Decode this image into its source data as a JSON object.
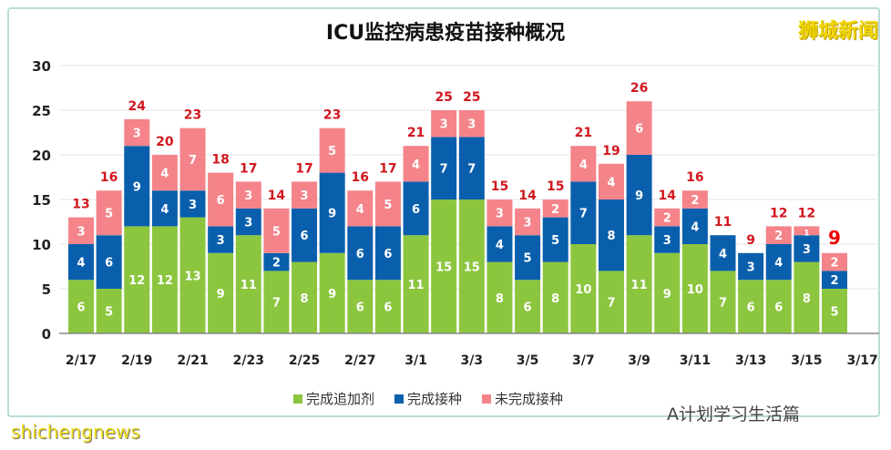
{
  "logo": "狮城新闻",
  "watermark": "A计划学习生活篇",
  "source_watermark": "shichengnews",
  "chart_data": {
    "type": "bar",
    "stacked": true,
    "title": "ICU监控病患疫苗接种概况",
    "categories": [
      "2/17",
      "2/18",
      "2/19",
      "2/20",
      "2/21",
      "2/22",
      "2/23",
      "2/24",
      "2/25",
      "2/26",
      "2/27",
      "2/28",
      "3/1",
      "3/2",
      "3/3",
      "3/4",
      "3/5",
      "3/6",
      "3/7",
      "3/8",
      "3/9",
      "3/10",
      "3/11",
      "3/12",
      "3/13",
      "3/14",
      "3/15",
      "3/16"
    ],
    "x_tick_labels": [
      "2/17",
      "2/19",
      "2/21",
      "2/23",
      "2/25",
      "2/27",
      "3/1",
      "3/3",
      "3/5",
      "3/7",
      "3/9",
      "3/11",
      "3/13",
      "3/15",
      "3/17"
    ],
    "series": [
      {
        "name": "完成追加剂",
        "color": "#8cc63f",
        "values": [
          6,
          5,
          12,
          12,
          13,
          9,
          11,
          7,
          8,
          9,
          6,
          6,
          11,
          15,
          15,
          8,
          6,
          8,
          10,
          7,
          11,
          9,
          10,
          7,
          6,
          6,
          8,
          5
        ]
      },
      {
        "name": "完成接种",
        "color": "#0a5fad",
        "values": [
          4,
          6,
          9,
          4,
          3,
          3,
          3,
          2,
          6,
          9,
          6,
          6,
          6,
          7,
          7,
          4,
          5,
          5,
          7,
          8,
          9,
          3,
          4,
          4,
          3,
          4,
          3,
          2
        ]
      },
      {
        "name": "未完成接种",
        "color": "#f4848a",
        "values": [
          3,
          5,
          3,
          4,
          7,
          6,
          3,
          5,
          3,
          5,
          4,
          5,
          4,
          3,
          3,
          3,
          3,
          2,
          4,
          4,
          6,
          2,
          2,
          0,
          0,
          2,
          1,
          2
        ]
      }
    ],
    "totals": [
      13,
      16,
      24,
      20,
      23,
      18,
      17,
      14,
      17,
      23,
      16,
      17,
      21,
      25,
      25,
      15,
      14,
      15,
      21,
      19,
      26,
      14,
      16,
      11,
      9,
      12,
      12,
      9
    ],
    "ylim": [
      0,
      30
    ],
    "yticks": [
      0,
      5,
      10,
      15,
      20,
      25,
      30
    ],
    "grid": true,
    "legend": "bottom"
  }
}
